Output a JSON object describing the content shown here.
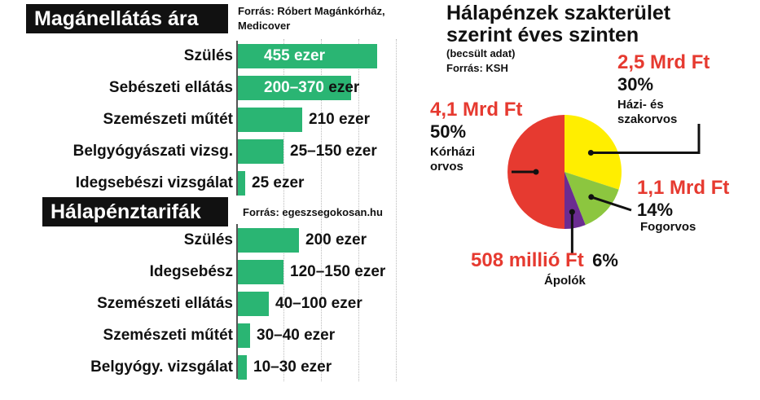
{
  "left": {
    "section1": {
      "title": "Magánellátás ára",
      "source": "Forrás: Róbert Magánkórház, Medicover",
      "rows": [
        {
          "label": "Szülés",
          "value_label": "455 ezer",
          "value": 455,
          "label_inside": true
        },
        {
          "label": "Sebészeti ellátás",
          "value_label": "200–370",
          "value_suffix": "ezer",
          "value": 370,
          "range": [
            200,
            370
          ],
          "label_inside": true
        },
        {
          "label": "Szemészeti műtét",
          "value_label": "210 ezer",
          "value": 210
        },
        {
          "label": "Belgyógyászati vizsg.",
          "value_label": "25–150 ezer",
          "value": 150,
          "range": [
            25,
            150
          ]
        },
        {
          "label": "Idegsebészi vizsgálat",
          "value_label": "25 ezer",
          "value": 25
        }
      ]
    },
    "section2": {
      "title": "Hálapénztarifák",
      "source": "Forrás: egeszsegokosan.hu",
      "rows": [
        {
          "label": "Szülés",
          "value_label": "200 ezer",
          "value": 200
        },
        {
          "label": "Idegsebész",
          "value_label": "120–150 ezer",
          "value": 150,
          "range": [
            120,
            150
          ]
        },
        {
          "label": "Szemészeti ellátás",
          "value_label": "40–100 ezer",
          "value": 100,
          "range": [
            40,
            100
          ]
        },
        {
          "label": "Szemészeti műtét",
          "value_label": "30–40 ezer",
          "value": 40,
          "range": [
            30,
            40
          ]
        },
        {
          "label": "Belgyógy. vizsgálat",
          "value_label": "10–30 ezer",
          "value": 30,
          "range": [
            10,
            30
          ]
        }
      ]
    }
  },
  "right": {
    "title_line1": "Hálapénzek szakterület",
    "title_line2": "szerint éves szinten",
    "note": "(becsült adat)",
    "source": "Forrás: KSH",
    "slices": [
      {
        "amount": "2,5 Mrd Ft",
        "pct": "30%",
        "cat_line1": "Házi- és",
        "cat_line2": "szakorvos",
        "color": "#ffee00"
      },
      {
        "amount": "1,1 Mrd Ft",
        "pct": "14%",
        "cat_line1": "Fogorvos",
        "cat_line2": "",
        "color": "#8cc63f"
      },
      {
        "amount": "508 millió Ft",
        "pct": "6%",
        "cat_line1": "Ápolók",
        "cat_line2": "",
        "color": "#6b2c91"
      },
      {
        "amount": "4,1 Mrd Ft",
        "pct": "50%",
        "cat_line1": "Kórházi",
        "cat_line2": "orvos",
        "color": "#e63a30"
      }
    ]
  },
  "chart_data": [
    {
      "type": "bar",
      "title": "Magánellátás ára",
      "categories": [
        "Szülés",
        "Sebészeti ellátás",
        "Szemészeti műtét",
        "Belgyógyászati vizsg.",
        "Idegsebészi vizsgálat"
      ],
      "values": [
        455,
        370,
        210,
        150,
        25
      ],
      "ranges": [
        [
          455,
          455
        ],
        [
          200,
          370
        ],
        [
          210,
          210
        ],
        [
          25,
          150
        ],
        [
          25,
          25
        ]
      ],
      "xlim": [
        0,
        500
      ]
    },
    {
      "type": "bar",
      "title": "Hálapénztarifák",
      "categories": [
        "Szülés",
        "Idegsebész",
        "Szemészeti ellátás",
        "Szemészeti műtét",
        "Belgyógy. vizsgálat"
      ],
      "values": [
        200,
        150,
        100,
        40,
        30
      ],
      "ranges": [
        [
          200,
          200
        ],
        [
          120,
          150
        ],
        [
          40,
          100
        ],
        [
          30,
          40
        ],
        [
          10,
          30
        ]
      ],
      "xlim": [
        0,
        500
      ]
    },
    {
      "type": "pie",
      "title": "Hálapénzek szakterület szerint éves szinten",
      "categories": [
        "Házi- és szakorvos",
        "Fogorvos",
        "Ápolók",
        "Kórházi orvos"
      ],
      "values": [
        30,
        14,
        6,
        50
      ],
      "amounts": [
        "2,5 Mrd Ft",
        "1,1 Mrd Ft",
        "508 millió Ft",
        "4,1 Mrd Ft"
      ]
    }
  ]
}
